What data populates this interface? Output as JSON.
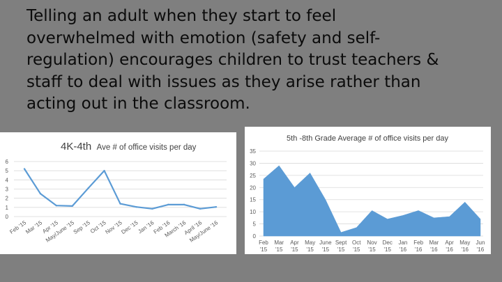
{
  "heading": {
    "lines": [
      "Telling an adult when they start to feel",
      "overwhelmed with emotion (safety and self-",
      "regulation) encourages children to trust teachers &",
      "staff to deal with issues as they arise rather than",
      "acting out in the classroom."
    ]
  },
  "chart_data": [
    {
      "type": "line",
      "title_prefix": "4K-4th",
      "title": "Ave # of office visits per day",
      "xlabel": "",
      "ylabel": "",
      "ylim": [
        0,
        6
      ],
      "yticks": [
        "0",
        "1",
        "2",
        "3",
        "4",
        "5",
        "6"
      ],
      "grid": true,
      "color": "#5b9bd5",
      "categories": [
        "Feb '15",
        "Mar '15",
        "Apr '15",
        "May/June '15",
        "Sep '15",
        "Oct '15",
        "Nov '15",
        "Dec '15",
        "Jan '16",
        "Feb '16",
        "March '16",
        "April '16",
        "May/June '16"
      ],
      "values": [
        5.2,
        2.5,
        1.2,
        1.15,
        3.1,
        5.0,
        1.4,
        1.05,
        0.85,
        1.3,
        1.3,
        0.85,
        1.05
      ]
    },
    {
      "type": "area",
      "title": "5th -8th Grade Average # of office visits per day",
      "xlabel": "",
      "ylabel": "",
      "ylim": [
        0,
        35
      ],
      "yticks": [
        "0",
        "5",
        "10",
        "15",
        "20",
        "25",
        "30",
        "35"
      ],
      "grid": true,
      "color": "#5b9bd5",
      "categories": [
        [
          "Feb",
          "'15"
        ],
        [
          "Mar",
          "'15"
        ],
        [
          "Apr",
          "'15"
        ],
        [
          "May",
          "'15"
        ],
        [
          "June",
          "'15"
        ],
        [
          "Sept",
          "'15"
        ],
        [
          "Oct",
          "'15"
        ],
        [
          "Nov",
          "'15"
        ],
        [
          "Dec",
          "'15"
        ],
        [
          "Jan",
          "'16"
        ],
        [
          "Feb",
          "'16"
        ],
        [
          "Mar",
          "'16"
        ],
        [
          "Apr",
          "'16"
        ],
        [
          "May",
          "'16"
        ],
        [
          "Jun",
          "'16"
        ]
      ],
      "values": [
        23.5,
        29,
        20,
        26,
        15,
        1.5,
        3.5,
        10.5,
        7,
        8.5,
        10.5,
        7.5,
        8,
        14,
        7
      ]
    }
  ]
}
